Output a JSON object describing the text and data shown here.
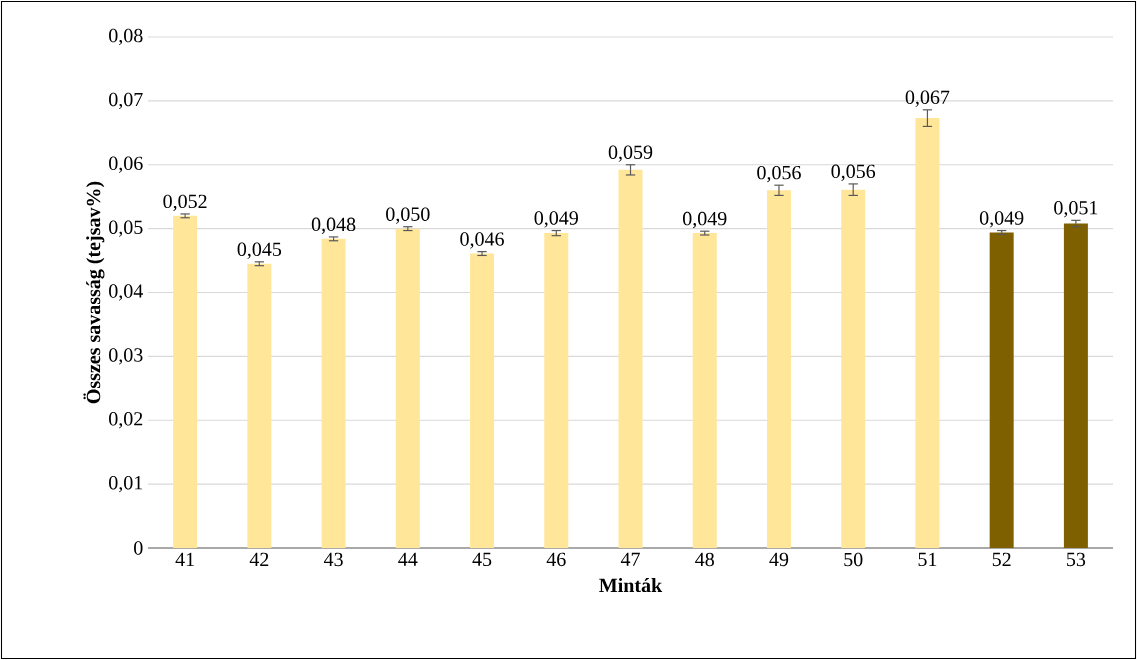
{
  "chart_data": {
    "type": "bar",
    "xlabel": "Minták",
    "ylabel": "Összes savasság (tejsav%)",
    "categories": [
      "41",
      "42",
      "43",
      "44",
      "45",
      "46",
      "47",
      "48",
      "49",
      "50",
      "51",
      "52",
      "53"
    ],
    "values": [
      0.052,
      0.0445,
      0.0484,
      0.05,
      0.0461,
      0.0493,
      0.0592,
      0.0493,
      0.056,
      0.0561,
      0.0673,
      0.0494,
      0.0508
    ],
    "errors": [
      0.0003,
      0.0003,
      0.0003,
      0.0003,
      0.0003,
      0.0004,
      0.0008,
      0.0003,
      0.0008,
      0.0009,
      0.0013,
      0.0003,
      0.0005
    ],
    "value_labels": [
      "0,052",
      "0,045",
      "0,048",
      "0,050",
      "0,046",
      "0,049",
      "0,059",
      "0,049",
      "0,056",
      "0,056",
      "0,067",
      "0,049",
      "0,051"
    ],
    "colors": [
      "#ffe699",
      "#ffe699",
      "#ffe699",
      "#ffe699",
      "#ffe699",
      "#ffe699",
      "#ffe699",
      "#ffe699",
      "#ffe699",
      "#ffe699",
      "#ffe699",
      "#7f6000",
      "#7f6000"
    ],
    "ylim": [
      0,
      0.08
    ],
    "yticks": [
      {
        "value": 0,
        "label": "0"
      },
      {
        "value": 0.01,
        "label": "0,01"
      },
      {
        "value": 0.02,
        "label": "0,02"
      },
      {
        "value": 0.03,
        "label": "0,03"
      },
      {
        "value": 0.04,
        "label": "0,04"
      },
      {
        "value": 0.05,
        "label": "0,05"
      },
      {
        "value": 0.06,
        "label": "0,06"
      },
      {
        "value": 0.07,
        "label": "0,07"
      },
      {
        "value": 0.08,
        "label": "0,08"
      }
    ],
    "grid": "y"
  }
}
